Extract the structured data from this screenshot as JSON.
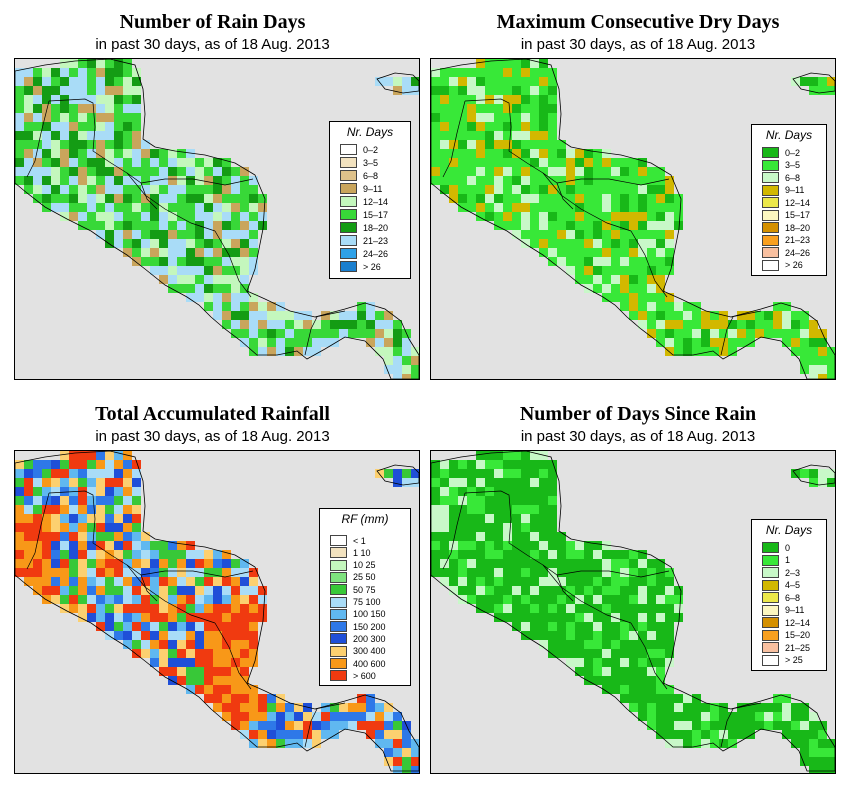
{
  "background_color": "#e2e2e2",
  "panels": [
    {
      "key": "rain_days",
      "title": "Number of Rain Days",
      "subtitle": "in past 30 days, as of  18 Aug. 2013",
      "legend_title": "Nr. Days",
      "classes": [
        {
          "label": "0–2",
          "color": "#ffffff"
        },
        {
          "label": "3–5",
          "color": "#f2e2bf"
        },
        {
          "label": "6–8",
          "color": "#dfc28b"
        },
        {
          "label": "9–11",
          "color": "#c9a55c"
        },
        {
          "label": "12–14",
          "color": "#c4f7bd"
        },
        {
          "label": "15–17",
          "color": "#38d838"
        },
        {
          "label": "18–20",
          "color": "#149c14"
        },
        {
          "label": "21–23",
          "color": "#a9dcf7"
        },
        {
          "label": "24–26",
          "color": "#2ea1e8"
        },
        {
          "label": "> 26",
          "color": "#1a7fcf"
        }
      ],
      "dominant": [
        "#38d838",
        "#a9dcf7",
        "#149c14",
        "#38d838",
        "#a9dcf7",
        "#c9a55c",
        "#c4f7bd"
      ]
    },
    {
      "key": "max_dry_days",
      "title": "Maximum Consecutive Dry Days",
      "subtitle": "in past 30 days, as of  18 Aug. 2013",
      "legend_title": "Nr. Days",
      "classes": [
        {
          "label": "0–2",
          "color": "#18b818"
        },
        {
          "label": "3–5",
          "color": "#38e838"
        },
        {
          "label": "6–8",
          "color": "#c8f8c8"
        },
        {
          "label": "9–11",
          "color": "#d2b800"
        },
        {
          "label": "12–14",
          "color": "#ece84a"
        },
        {
          "label": "15–17",
          "color": "#fcf7c0"
        },
        {
          "label": "18–20",
          "color": "#d49000"
        },
        {
          "label": "21–23",
          "color": "#f8a020"
        },
        {
          "label": "24–26",
          "color": "#f8c0a0"
        },
        {
          "label": "> 26",
          "color": "#ffffff"
        }
      ],
      "dominant": [
        "#38e838",
        "#38e838",
        "#38e838",
        "#18b818",
        "#c8f8c8",
        "#d2b800"
      ]
    },
    {
      "key": "total_rainfall",
      "title": "Total Accumulated Rainfall",
      "subtitle": "in past 30 days, as of  18 Aug. 2013",
      "legend_title": "RF (mm)",
      "classes": [
        {
          "label": "< 1",
          "color": "#ffffff"
        },
        {
          "label": "1  10",
          "color": "#f2e2bf"
        },
        {
          "label": "10  25",
          "color": "#c4f7bd"
        },
        {
          "label": "25  50",
          "color": "#7ee27e"
        },
        {
          "label": "50  75",
          "color": "#38c838"
        },
        {
          "label": "75  100",
          "color": "#a9dcf7"
        },
        {
          "label": "100  150",
          "color": "#60b8f0"
        },
        {
          "label": "150  200",
          "color": "#2e78e8"
        },
        {
          "label": "200  300",
          "color": "#1f4fd8"
        },
        {
          "label": "300  400",
          "color": "#fcd070"
        },
        {
          "label": "400  600",
          "color": "#f89818"
        },
        {
          "label": "> 600",
          "color": "#f03a10"
        }
      ],
      "dominant": [
        "#2e78e8",
        "#60b8f0",
        "#1f4fd8",
        "#a9dcf7",
        "#38c838",
        "#f89818",
        "#f03a10",
        "#fcd070"
      ]
    },
    {
      "key": "days_since_rain",
      "title": "Number of Days Since Rain",
      "subtitle": "in past 30 days, as of  18 Aug. 2013",
      "legend_title": "Nr. Days",
      "classes": [
        {
          "label": "0",
          "color": "#18b818"
        },
        {
          "label": "1",
          "color": "#38e838"
        },
        {
          "label": "2–3",
          "color": "#c8f8c8"
        },
        {
          "label": "4–5",
          "color": "#d2b800"
        },
        {
          "label": "6–8",
          "color": "#ece84a"
        },
        {
          "label": "9–11",
          "color": "#fcf7c0"
        },
        {
          "label": "12–14",
          "color": "#d49000"
        },
        {
          "label": "15–20",
          "color": "#f8a020"
        },
        {
          "label": "21–25",
          "color": "#f8c0a0"
        },
        {
          "label": "> 25",
          "color": "#ffffff"
        }
      ],
      "dominant": [
        "#18b818",
        "#18b818",
        "#18b818",
        "#38e838",
        "#c8f8c8",
        "#18b818"
      ]
    }
  ]
}
